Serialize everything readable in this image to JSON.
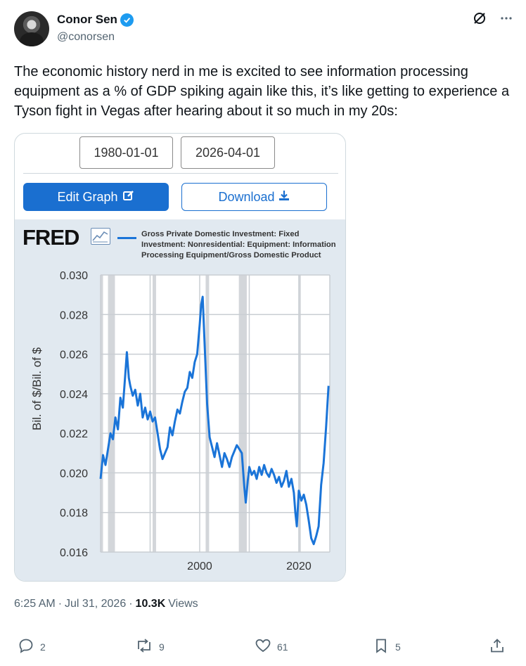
{
  "author": {
    "name": "Conor Sen",
    "handle": "@conorsen",
    "icons": [
      "avatar",
      "verified-badge-icon",
      "grok-icon",
      "more-icon"
    ]
  },
  "tweet_text": "The economic history nerd in me is excited to see information processing equipment as a % of GDP spiking again like this, it’s like getting to experience a Tyson fight in Vegas after hearing about it so much in my 20s:",
  "card": {
    "start_date": "1980-01-01",
    "end_date": "2026-04-01",
    "edit_label": "Edit Graph",
    "download_label": "Download",
    "brand": "FRED",
    "accent": "#1a6fd0"
  },
  "chart_data": {
    "type": "line",
    "series": [
      {
        "name": "Gross Private Domestic Investment: Fixed Investment: Nonresidential: Equipment: Information Processing Equipment/Gross Domestic Product",
        "color": "#1a74d8",
        "points": [
          [
            1980.0,
            0.0197
          ],
          [
            1980.5,
            0.0209
          ],
          [
            1981.0,
            0.0204
          ],
          [
            1981.5,
            0.0212
          ],
          [
            1982.0,
            0.022
          ],
          [
            1982.5,
            0.0217
          ],
          [
            1983.0,
            0.0228
          ],
          [
            1983.5,
            0.0222
          ],
          [
            1984.0,
            0.0238
          ],
          [
            1984.5,
            0.0233
          ],
          [
            1985.0,
            0.025
          ],
          [
            1985.3,
            0.0261
          ],
          [
            1985.7,
            0.0248
          ],
          [
            1986.0,
            0.0244
          ],
          [
            1986.5,
            0.0239
          ],
          [
            1987.0,
            0.0242
          ],
          [
            1987.5,
            0.0234
          ],
          [
            1988.0,
            0.024
          ],
          [
            1988.5,
            0.0228
          ],
          [
            1989.0,
            0.0233
          ],
          [
            1989.5,
            0.0227
          ],
          [
            1990.0,
            0.0231
          ],
          [
            1990.5,
            0.0226
          ],
          [
            1991.0,
            0.0228
          ],
          [
            1991.5,
            0.022
          ],
          [
            1992.0,
            0.0212
          ],
          [
            1992.5,
            0.0207
          ],
          [
            1993.0,
            0.021
          ],
          [
            1993.5,
            0.0213
          ],
          [
            1994.0,
            0.0223
          ],
          [
            1994.5,
            0.0219
          ],
          [
            1995.0,
            0.0226
          ],
          [
            1995.5,
            0.0232
          ],
          [
            1996.0,
            0.023
          ],
          [
            1996.5,
            0.0236
          ],
          [
            1997.0,
            0.0241
          ],
          [
            1997.5,
            0.0243
          ],
          [
            1998.0,
            0.0251
          ],
          [
            1998.5,
            0.0248
          ],
          [
            1999.0,
            0.0256
          ],
          [
            1999.5,
            0.026
          ],
          [
            2000.0,
            0.0275
          ],
          [
            2000.3,
            0.0285
          ],
          [
            2000.6,
            0.0289
          ],
          [
            2001.0,
            0.0265
          ],
          [
            2001.5,
            0.0235
          ],
          [
            2002.0,
            0.0218
          ],
          [
            2002.5,
            0.0213
          ],
          [
            2003.0,
            0.0208
          ],
          [
            2003.5,
            0.0215
          ],
          [
            2004.0,
            0.0209
          ],
          [
            2004.5,
            0.0203
          ],
          [
            2005.0,
            0.021
          ],
          [
            2005.5,
            0.0207
          ],
          [
            2006.0,
            0.0203
          ],
          [
            2006.5,
            0.0208
          ],
          [
            2007.0,
            0.0211
          ],
          [
            2007.5,
            0.0214
          ],
          [
            2008.0,
            0.0212
          ],
          [
            2008.5,
            0.021
          ],
          [
            2009.0,
            0.0193
          ],
          [
            2009.3,
            0.0185
          ],
          [
            2009.7,
            0.0196
          ],
          [
            2010.0,
            0.0203
          ],
          [
            2010.5,
            0.0199
          ],
          [
            2011.0,
            0.0201
          ],
          [
            2011.5,
            0.0197
          ],
          [
            2012.0,
            0.0203
          ],
          [
            2012.5,
            0.0199
          ],
          [
            2013.0,
            0.0204
          ],
          [
            2013.5,
            0.02
          ],
          [
            2014.0,
            0.0198
          ],
          [
            2014.5,
            0.0202
          ],
          [
            2015.0,
            0.0199
          ],
          [
            2015.5,
            0.0195
          ],
          [
            2016.0,
            0.0198
          ],
          [
            2016.5,
            0.0193
          ],
          [
            2017.0,
            0.0196
          ],
          [
            2017.5,
            0.0201
          ],
          [
            2018.0,
            0.0193
          ],
          [
            2018.5,
            0.0197
          ],
          [
            2019.0,
            0.019
          ],
          [
            2019.3,
            0.018
          ],
          [
            2019.6,
            0.0173
          ],
          [
            2020.0,
            0.0191
          ],
          [
            2020.5,
            0.0186
          ],
          [
            2021.0,
            0.0189
          ],
          [
            2021.5,
            0.0184
          ],
          [
            2022.0,
            0.0176
          ],
          [
            2022.5,
            0.0167
          ],
          [
            2023.0,
            0.0164
          ],
          [
            2023.5,
            0.0168
          ],
          [
            2024.0,
            0.0173
          ],
          [
            2024.5,
            0.0194
          ],
          [
            2025.0,
            0.0205
          ],
          [
            2025.5,
            0.0223
          ],
          [
            2026.0,
            0.0244
          ]
        ]
      }
    ],
    "x_ticks": [
      2000,
      2020
    ],
    "y_ticks": [
      0.016,
      0.018,
      0.02,
      0.022,
      0.024,
      0.026,
      0.028,
      0.03
    ],
    "xlim": [
      1980,
      2026.25
    ],
    "ylim": [
      0.016,
      0.03
    ],
    "ylabel": "Bil. of $/Bil. of $",
    "recessions": [
      [
        1980.0,
        1980.5
      ],
      [
        1981.5,
        1982.9
      ],
      [
        1990.5,
        1991.2
      ],
      [
        2001.2,
        2001.9
      ],
      [
        2007.9,
        2009.5
      ],
      [
        2020.0,
        2020.4
      ]
    ],
    "grid": true,
    "legend": "top"
  },
  "meta": {
    "time": "6:25 AM",
    "date": "Jul 31, 2026",
    "views_count": "10.3K",
    "views_label": "Views"
  },
  "actions": {
    "replies": "2",
    "reposts": "9",
    "likes": "61",
    "bookmarks": "5"
  }
}
